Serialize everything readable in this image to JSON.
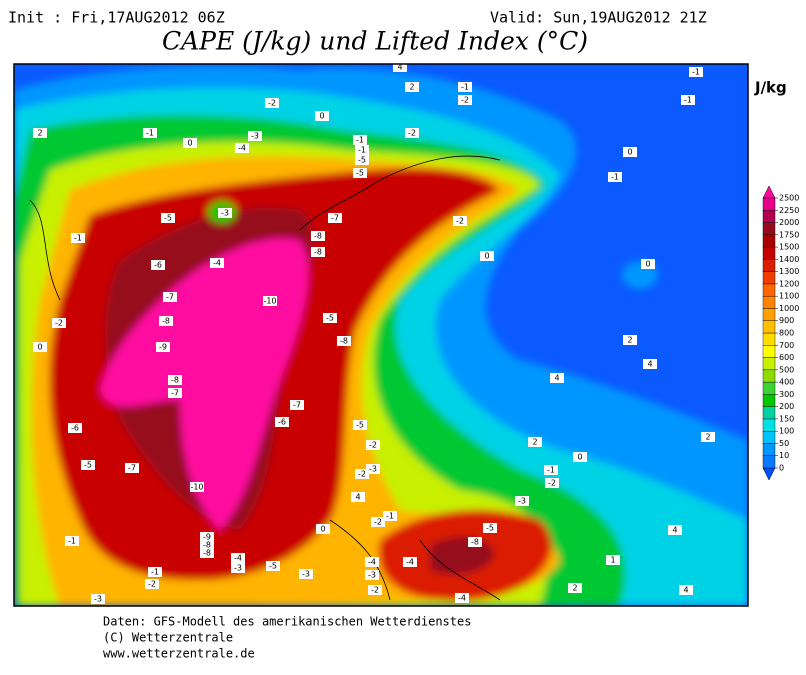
{
  "header": {
    "init": "Init : Fri,17AUG2012 06Z",
    "valid": "Valid: Sun,19AUG2012 21Z",
    "title": "CAPE (J/kg) und Lifted Index (°C)"
  },
  "legend": {
    "unit": "J/kg",
    "levels": [
      0,
      10,
      50,
      100,
      150,
      200,
      300,
      400,
      500,
      600,
      700,
      800,
      900,
      1000,
      1100,
      1200,
      1300,
      1400,
      1500,
      1750,
      2000,
      2250,
      2500
    ],
    "colors": [
      "#0a78ff",
      "#0096ff",
      "#00c3ff",
      "#00e1e6",
      "#00d2a0",
      "#00c800",
      "#3cd232",
      "#8cdc00",
      "#c8f000",
      "#ffff00",
      "#ffdc00",
      "#ffbe00",
      "#ffa000",
      "#ff8200",
      "#ff6400",
      "#f03c00",
      "#dc1e00",
      "#c80000",
      "#aa0000",
      "#960a1e",
      "#b40050",
      "#e6008c"
    ],
    "below_color": "#0050ff",
    "above_color": "#ff0aa0"
  },
  "contour_labels": [
    -2,
    0,
    -1,
    -3,
    -4,
    0,
    2,
    -1,
    -1,
    -5,
    -5,
    -2,
    -1,
    -2,
    2,
    4,
    -1,
    -1,
    0,
    -1,
    -3,
    -5,
    -1,
    -4,
    -6,
    -7,
    -8,
    -8,
    -2,
    0,
    0,
    -10,
    -7,
    -8,
    -2,
    0,
    -9,
    -5,
    -8,
    2,
    4,
    -8,
    -7,
    4,
    -7,
    -6,
    -5,
    -6,
    -5,
    -7,
    -2,
    -3,
    -2,
    2,
    0,
    2,
    -1,
    -2,
    -10,
    -3,
    4,
    -2,
    -1,
    -5,
    -8,
    -9,
    -8,
    -8,
    -4,
    -3,
    -5,
    -3,
    0,
    -1,
    -1,
    -2,
    -4,
    -3,
    -4,
    -4,
    2,
    1,
    4,
    4,
    -3,
    -2
  ],
  "footer": [
    "Daten: GFS-Modell des amerikanischen Wetterdienstes",
    "(C) Wetterzentrale",
    "www.wetterzentrale.de"
  ]
}
